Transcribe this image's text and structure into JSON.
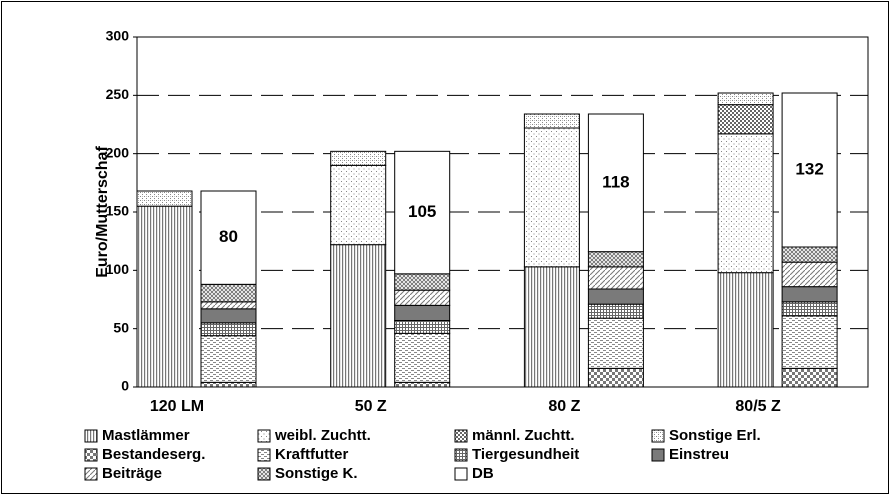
{
  "chart_data": {
    "type": "grouped-stacked-bar",
    "y_label": "Euro/Mutterschaf",
    "categories": [
      "120 LM",
      "50 Z",
      "80 Z",
      "80/5 Z"
    ],
    "ylim": [
      0,
      300
    ],
    "yticks": [
      0,
      50,
      100,
      150,
      200,
      250,
      300
    ],
    "grid": true,
    "stacks": [
      "revenue",
      "cost"
    ],
    "series": [
      {
        "name": "Mastlämmer",
        "stack": "revenue",
        "pattern": "vlines",
        "color": "#808080",
        "values": [
          155,
          122,
          103,
          98
        ]
      },
      {
        "name": "weibl. Zuchtt.",
        "stack": "revenue",
        "pattern": "dots",
        "color": "#a0a0a0",
        "values": [
          0,
          68,
          119,
          119
        ]
      },
      {
        "name": "männl. Zuchtt.",
        "stack": "revenue",
        "pattern": "checker",
        "color": "#707070",
        "values": [
          0,
          0,
          0,
          25
        ]
      },
      {
        "name": "Sonstige Erl.",
        "stack": "revenue",
        "pattern": "crossfine",
        "color": "#909090",
        "values": [
          13,
          12,
          12,
          10
        ]
      },
      {
        "name": "Bestandeserg.",
        "stack": "cost",
        "pattern": "checkerlarge",
        "color": "#808080",
        "values": [
          4,
          4,
          16,
          16
        ]
      },
      {
        "name": "Kraftfutter",
        "stack": "cost",
        "pattern": "bricks",
        "color": "#909090",
        "values": [
          40,
          42,
          43,
          45
        ]
      },
      {
        "name": "Tiergesundheit",
        "stack": "cost",
        "pattern": "grid",
        "color": "#707070",
        "values": [
          11,
          11,
          12,
          12
        ]
      },
      {
        "name": "Einstreu",
        "stack": "cost",
        "pattern": "solid",
        "color": "#7a7a7a",
        "values": [
          12,
          13,
          13,
          13
        ]
      },
      {
        "name": "Beiträge",
        "stack": "cost",
        "pattern": "diag",
        "color": "#909090",
        "values": [
          6,
          13,
          19,
          21
        ]
      },
      {
        "name": "Sonstige K.",
        "stack": "cost",
        "pattern": "crossdiag",
        "color": "#707070",
        "values": [
          15,
          14,
          13,
          13
        ]
      },
      {
        "name": "DB",
        "stack": "cost",
        "pattern": "solid",
        "color": "#ffffff",
        "show_values": true,
        "values": [
          80,
          105,
          118,
          132
        ]
      }
    ]
  }
}
